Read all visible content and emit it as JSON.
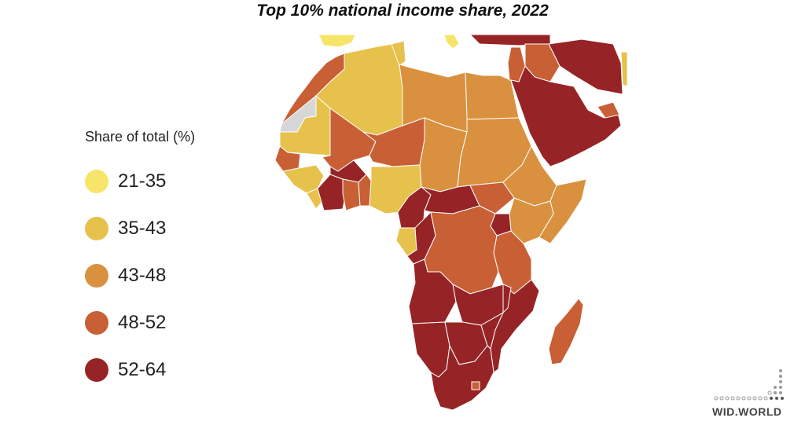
{
  "title": "Top 10% national income share, 2022",
  "legend": {
    "title": "Share of total (%)",
    "items": [
      {
        "label": "21-35",
        "color": "#f7e56a"
      },
      {
        "label": "35-43",
        "color": "#e6c24c"
      },
      {
        "label": "43-48",
        "color": "#d9913f"
      },
      {
        "label": "48-52",
        "color": "#c95f35"
      },
      {
        "label": "52-64",
        "color": "#962426"
      }
    ]
  },
  "region_classes": {
    "southern-africa": "52-64",
    "angola": "52-64",
    "cameroon-car": "52-64",
    "arabian-peninsula": "52-64",
    "drc": "48-52",
    "tanzania": "48-52",
    "madagascar": "48-52",
    "morocco": "48-52",
    "mali-niger-west": "48-52",
    "egypt": "43-48",
    "libya": "43-48",
    "sudan": "43-48",
    "chad": "43-48",
    "ethiopia-somalia": "43-48",
    "kenya": "43-48",
    "algeria": "35-43",
    "mauritania": "35-43",
    "nigeria": "35-43",
    "gabon": "35-43",
    "spain": "21-35",
    "italy": "21-35"
  },
  "logo_text": "WID.WORLD"
}
